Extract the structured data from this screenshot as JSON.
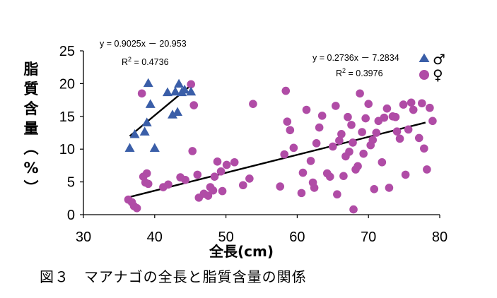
{
  "chart_data": {
    "type": "scatter",
    "title": "",
    "xlabel": "全長(cm)",
    "ylabel": "脂質含量(%)",
    "xlim": [
      30,
      80
    ],
    "ylim": [
      0,
      25
    ],
    "x_ticks": [
      30,
      40,
      50,
      60,
      70,
      80
    ],
    "y_ticks": [
      0,
      5,
      10,
      15,
      20,
      25
    ],
    "grid": false,
    "legend_position": "top-right",
    "series": [
      {
        "name": "♂",
        "marker": "triangle",
        "color": "#3a5ea8",
        "points": [
          [
            36.5,
            10.1
          ],
          [
            37.2,
            12.2
          ],
          [
            38.6,
            12.6
          ],
          [
            38.9,
            14.0
          ],
          [
            39.1,
            20.0
          ],
          [
            39.4,
            16.8
          ],
          [
            40.0,
            10.1
          ],
          [
            41.8,
            18.6
          ],
          [
            42.5,
            15.2
          ],
          [
            42.9,
            18.7
          ],
          [
            43.2,
            15.6
          ],
          [
            43.4,
            19.9
          ],
          [
            43.8,
            18.6
          ],
          [
            44.2,
            19.0
          ],
          [
            45.1,
            18.7
          ]
        ],
        "regression": {
          "equation": "y = 0.9025x － 20.953",
          "r2_label": "R",
          "r2_exp": "2",
          "r2_value": " = 0.4736",
          "slope": 0.9025,
          "intercept": -20.953,
          "x_range": [
            36.5,
            45.4
          ]
        }
      },
      {
        "name": "♀",
        "marker": "circle",
        "color": "#b04ca6",
        "points": [
          [
            36.3,
            2.3
          ],
          [
            36.8,
            1.9
          ],
          [
            37.1,
            1.3
          ],
          [
            37.5,
            1.0
          ],
          [
            38.2,
            18.5
          ],
          [
            38.4,
            5.8
          ],
          [
            38.7,
            4.9
          ],
          [
            38.9,
            6.3
          ],
          [
            39.1,
            4.7
          ],
          [
            41.2,
            4.2
          ],
          [
            41.9,
            4.6
          ],
          [
            43.6,
            5.7
          ],
          [
            44.3,
            5.3
          ],
          [
            45.1,
            19.9
          ],
          [
            45.3,
            9.7
          ],
          [
            45.5,
            16.7
          ],
          [
            46.0,
            6.1
          ],
          [
            46.2,
            2.6
          ],
          [
            46.9,
            3.2
          ],
          [
            47.5,
            2.9
          ],
          [
            47.8,
            4.2
          ],
          [
            48.2,
            3.7
          ],
          [
            48.4,
            5.8
          ],
          [
            48.8,
            8.1
          ],
          [
            49.3,
            6.6
          ],
          [
            49.5,
            3.6
          ],
          [
            50.1,
            7.6
          ],
          [
            51.2,
            8.0
          ],
          [
            52.4,
            4.5
          ],
          [
            53.3,
            5.5
          ],
          [
            53.8,
            16.9
          ],
          [
            57.6,
            4.3
          ],
          [
            58.2,
            9.2
          ],
          [
            58.4,
            18.9
          ],
          [
            58.6,
            14.2
          ],
          [
            59.0,
            12.9
          ],
          [
            59.5,
            10.2
          ],
          [
            60.6,
            3.3
          ],
          [
            60.8,
            6.4
          ],
          [
            61.3,
            16.0
          ],
          [
            61.9,
            8.2
          ],
          [
            62.2,
            4.9
          ],
          [
            62.4,
            4.1
          ],
          [
            62.7,
            10.9
          ],
          [
            63.1,
            13.3
          ],
          [
            63.5,
            15.1
          ],
          [
            64.2,
            6.3
          ],
          [
            64.6,
            5.8
          ],
          [
            65.0,
            10.4
          ],
          [
            65.4,
            16.6
          ],
          [
            65.6,
            3.1
          ],
          [
            65.9,
            11.3
          ],
          [
            66.2,
            12.3
          ],
          [
            66.5,
            5.9
          ],
          [
            66.8,
            8.9
          ],
          [
            67.1,
            14.9
          ],
          [
            67.3,
            9.6
          ],
          [
            67.6,
            13.7
          ],
          [
            67.8,
            11.0
          ],
          [
            67.9,
            0.8
          ],
          [
            68.2,
            6.9
          ],
          [
            68.5,
            7.4
          ],
          [
            68.8,
            18.5
          ],
          [
            69.1,
            12.6
          ],
          [
            69.3,
            9.3
          ],
          [
            69.6,
            14.7
          ],
          [
            70.0,
            16.9
          ],
          [
            70.3,
            10.6
          ],
          [
            70.6,
            11.4
          ],
          [
            70.8,
            3.9
          ],
          [
            71.1,
            12.5
          ],
          [
            71.4,
            14.3
          ],
          [
            71.9,
            8.0
          ],
          [
            72.2,
            14.8
          ],
          [
            72.6,
            16.2
          ],
          [
            72.9,
            4.1
          ],
          [
            73.4,
            15.0
          ],
          [
            73.8,
            14.9
          ],
          [
            74.0,
            12.7
          ],
          [
            74.4,
            11.6
          ],
          [
            74.9,
            16.8
          ],
          [
            75.2,
            6.1
          ],
          [
            75.6,
            13.0
          ],
          [
            76.0,
            17.1
          ],
          [
            76.3,
            16.0
          ],
          [
            77.1,
            11.7
          ],
          [
            77.5,
            17.0
          ],
          [
            77.8,
            10.1
          ],
          [
            78.2,
            6.9
          ],
          [
            78.6,
            16.3
          ],
          [
            79.0,
            14.3
          ]
        ],
        "regression": {
          "equation": "y = 0.2736x － 7.2834",
          "r2_label": "R",
          "r2_exp": "2",
          "r2_value": " = 0.3976",
          "slope": 0.2736,
          "intercept": -7.2834,
          "x_range": [
            36.3,
            78.0
          ]
        }
      }
    ]
  },
  "caption": "図３　マアナゴの全長と脂質含量の関係"
}
